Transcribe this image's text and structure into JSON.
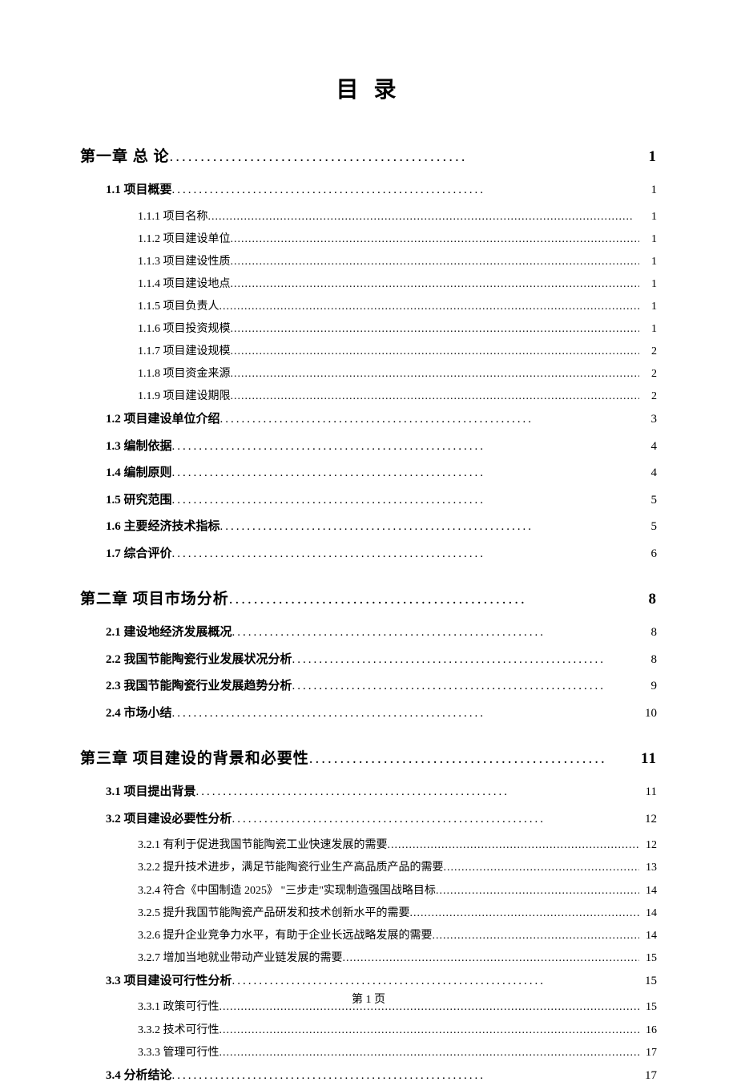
{
  "title": "目 录",
  "footer": "第 1 页",
  "dots_chapter": "................................................",
  "dots_section": "..........................................................",
  "dots_sub": "......................................................................................................................",
  "toc": [
    {
      "level": "chapter",
      "text": "第一章 总 论",
      "page": "1"
    },
    {
      "level": "section",
      "text": "1.1 项目概要",
      "page": "1"
    },
    {
      "level": "subsection",
      "text": "1.1.1 项目名称",
      "page": "1"
    },
    {
      "level": "subsection",
      "text": "1.1.2 项目建设单位",
      "page": "1"
    },
    {
      "level": "subsection",
      "text": "1.1.3 项目建设性质",
      "page": "1"
    },
    {
      "level": "subsection",
      "text": "1.1.4 项目建设地点",
      "page": "1"
    },
    {
      "level": "subsection",
      "text": "1.1.5 项目负责人",
      "page": "1"
    },
    {
      "level": "subsection",
      "text": "1.1.6 项目投资规模",
      "page": "1"
    },
    {
      "level": "subsection",
      "text": "1.1.7 项目建设规模",
      "page": "2"
    },
    {
      "level": "subsection",
      "text": "1.1.8 项目资金来源",
      "page": "2"
    },
    {
      "level": "subsection",
      "text": "1.1.9 项目建设期限",
      "page": "2"
    },
    {
      "level": "section",
      "text": "1.2 项目建设单位介绍",
      "page": "3"
    },
    {
      "level": "section",
      "text": "1.3 编制依据",
      "page": "4"
    },
    {
      "level": "section",
      "text": "1.4 编制原则",
      "page": "4"
    },
    {
      "level": "section",
      "text": "1.5 研究范围",
      "page": "5"
    },
    {
      "level": "section",
      "text": "1.6 主要经济技术指标",
      "page": "5"
    },
    {
      "level": "section",
      "text": "1.7 综合评价",
      "page": "6"
    },
    {
      "level": "chapter",
      "text": "第二章 项目市场分析",
      "page": "8"
    },
    {
      "level": "section",
      "text": "2.1 建设地经济发展概况",
      "page": "8"
    },
    {
      "level": "section",
      "text": "2.2 我国节能陶瓷行业发展状况分析",
      "page": "8"
    },
    {
      "level": "section",
      "text": "2.3 我国节能陶瓷行业发展趋势分析",
      "page": "9"
    },
    {
      "level": "section",
      "text": "2.4 市场小结",
      "page": "10"
    },
    {
      "level": "chapter",
      "text": "第三章 项目建设的背景和必要性",
      "page": "11"
    },
    {
      "level": "section",
      "text": "3.1 项目提出背景",
      "page": "11"
    },
    {
      "level": "section",
      "text": "3.2 项目建设必要性分析",
      "page": "12"
    },
    {
      "level": "subsection",
      "text": "3.2.1 有利于促进我国节能陶瓷工业快速发展的需要",
      "page": "12"
    },
    {
      "level": "subsection",
      "text": "3.2.2 提升技术进步，满足节能陶瓷行业生产高品质产品的需要",
      "page": "13"
    },
    {
      "level": "subsection",
      "text": "3.2.4 符合《中国制造 2025》 \"三步走\"实现制造强国战略目标",
      "page": "14"
    },
    {
      "level": "subsection",
      "text": "3.2.5 提升我国节能陶瓷产品研发和技术创新水平的需要",
      "page": "14"
    },
    {
      "level": "subsection",
      "text": "3.2.6 提升企业竞争力水平，有助于企业长远战略发展的需要",
      "page": "14"
    },
    {
      "level": "subsection",
      "text": "3.2.7 增加当地就业带动产业链发展的需要",
      "page": "15"
    },
    {
      "level": "section",
      "text": "3.3 项目建设可行性分析",
      "page": "15"
    },
    {
      "level": "subsection",
      "text": "3.3.1 政策可行性",
      "page": "15"
    },
    {
      "level": "subsection",
      "text": "3.3.2 技术可行性",
      "page": "16"
    },
    {
      "level": "subsection",
      "text": "3.3.3 管理可行性",
      "page": "17"
    },
    {
      "level": "section",
      "text": "3.4 分析结论",
      "page": "17"
    }
  ]
}
